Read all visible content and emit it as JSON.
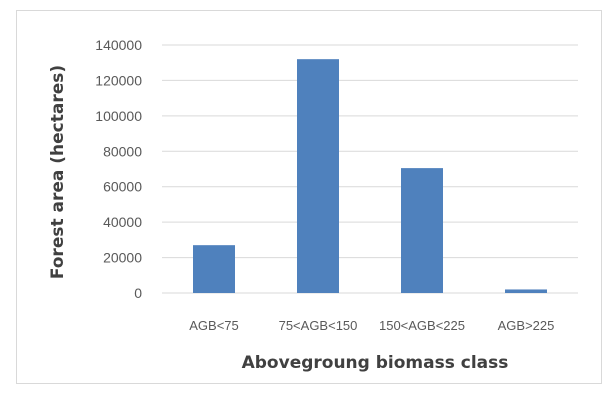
{
  "chart_data": {
    "type": "bar",
    "title": "",
    "xlabel": "Abovegroung biomass class",
    "ylabel": "Forest area (hectares)",
    "categories": [
      "AGB<75",
      "75<AGB<150",
      "150<AGB<225",
      "AGB>225"
    ],
    "values": [
      27000,
      132000,
      70500,
      2000
    ],
    "ylim": [
      0,
      140000
    ],
    "yticks": [
      0,
      20000,
      40000,
      60000,
      80000,
      100000,
      120000,
      140000
    ],
    "ytick_labels": [
      "0",
      "20000",
      "40000",
      "60000",
      "80000",
      "100000",
      "120000",
      "140000"
    ],
    "grid": true,
    "legend": "none",
    "colors": {
      "bar": "#4f81bd",
      "grid": "#d9d9d9",
      "axis_line": "#d9d9d9"
    }
  }
}
